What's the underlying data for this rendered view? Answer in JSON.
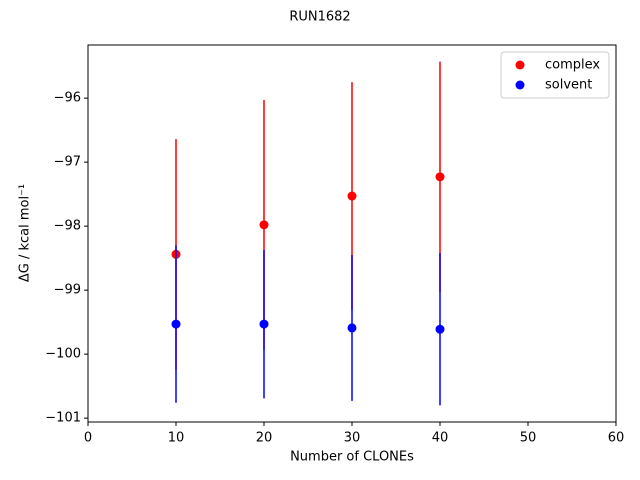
{
  "chart_data": {
    "type": "errorbar",
    "title": "RUN1682",
    "xlabel": "Number of CLONEs",
    "ylabel": "ΔG / kcal mol⁻¹",
    "x": [
      10,
      20,
      30,
      40
    ],
    "series": [
      {
        "name": "complex",
        "color": "#ff0000",
        "values": [
          -98.44,
          -97.98,
          -97.53,
          -97.23
        ],
        "errors": [
          1.8,
          1.95,
          1.78,
          1.8
        ]
      },
      {
        "name": "solvent",
        "color": "#0000ff",
        "values": [
          -99.53,
          -99.53,
          -99.59,
          -99.61
        ],
        "errors": [
          1.23,
          1.16,
          1.14,
          1.19
        ]
      }
    ],
    "xlim": [
      0,
      60
    ],
    "xticks": [
      0,
      10,
      20,
      30,
      40,
      50,
      60
    ],
    "ylim": [
      -101.06,
      -95.17
    ],
    "yticks": [
      {
        "value": -101,
        "label": "−101"
      },
      {
        "value": -100,
        "label": "−100"
      },
      {
        "value": -99,
        "label": "−99"
      },
      {
        "value": -98,
        "label": "−98"
      },
      {
        "value": -97,
        "label": "−97"
      },
      {
        "value": -96,
        "label": "−96"
      }
    ],
    "legend": "upper right"
  }
}
